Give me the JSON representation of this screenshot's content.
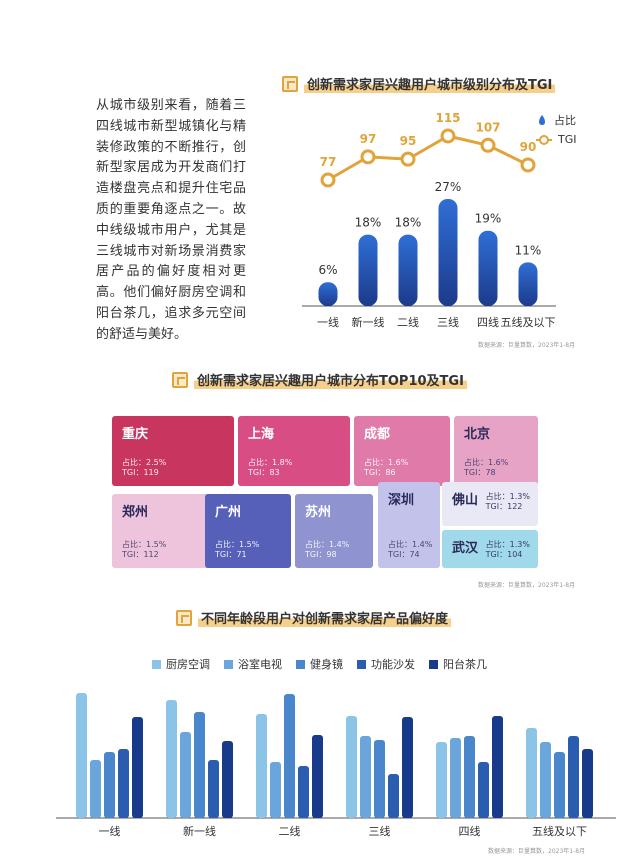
{
  "intro_text": "从城市级别来看，随着三四线城市新型城镇化与精装修政策的不断推行，创新型家居成为开发商们打造楼盘亮点和提升住宅品质的重要角逐点之一。故中线级城市用户，尤其是三线城市对新场景消费家居产品的偏好度相对更高。他们偏好厨房空调和阳台茶几，追求多元空间的舒适与美好。",
  "section1": {
    "title": "创新需求家居兴趣用户城市级别分布及TGI",
    "legend_share": "占比",
    "legend_tgi": "TGI",
    "source": "数据来源：巨量算数，2023年1-8月"
  },
  "section2": {
    "title": "创新需求家居兴趣用户城市分布TOP10及TGI",
    "source": "数据来源：巨量算数，2023年1-8月",
    "share_prefix": "占比：",
    "tgi_prefix": "TGI："
  },
  "section3": {
    "title": "不同年龄段用户对创新需求家居产品偏好度",
    "source": "数据来源：巨量算数，2023年1-8月"
  },
  "colors": {
    "bar_top": "#2f6fd6",
    "bar_bottom": "#1c3a8a",
    "tgi_line": "#e0a43a",
    "accent": "#f6cf8a"
  },
  "chart_data": [
    {
      "type": "bar",
      "title": "创新需求家居兴趣用户城市级别分布及TGI",
      "categories": [
        "一线",
        "新一线",
        "二线",
        "三线",
        "四线",
        "五线及以下"
      ],
      "series": [
        {
          "name": "占比",
          "values": [
            6,
            18,
            18,
            27,
            19,
            11
          ],
          "labels": [
            "6%",
            "18%",
            "18%",
            "27%",
            "19%",
            "11%"
          ]
        },
        {
          "name": "TGI",
          "type": "line",
          "values": [
            77,
            97,
            95,
            115,
            107,
            90
          ]
        }
      ],
      "legend": "top-right",
      "grid": false
    },
    {
      "type": "table",
      "title": "创新需求家居兴趣用户城市分布TOP10及TGI",
      "rows": [
        {
          "city": "重庆",
          "share": "2.5%",
          "tgi": "119",
          "color": "#c8355f"
        },
        {
          "city": "上海",
          "share": "1.8%",
          "tgi": "83",
          "color": "#d84e84"
        },
        {
          "city": "成都",
          "share": "1.6%",
          "tgi": "86",
          "color": "#e07aa8"
        },
        {
          "city": "北京",
          "share": "1.6%",
          "tgi": "78",
          "color": "#e7a3c6"
        },
        {
          "city": "郑州",
          "share": "1.5%",
          "tgi": "112",
          "color": "#eec4dc"
        },
        {
          "city": "广州",
          "share": "1.5%",
          "tgi": "71",
          "color": "#5660b8"
        },
        {
          "city": "苏州",
          "share": "1.4%",
          "tgi": "98",
          "color": "#8f93d0"
        },
        {
          "city": "深圳",
          "share": "1.4%",
          "tgi": "74",
          "color": "#c2c2ea"
        },
        {
          "city": "佛山",
          "share": "1.3%",
          "tgi": "122",
          "color": "#e9e9f6"
        },
        {
          "city": "武汉",
          "share": "1.3%",
          "tgi": "104",
          "color": "#9fd9ea"
        }
      ]
    },
    {
      "type": "bar",
      "title": "不同年龄段用户对创新需求家居产品偏好度",
      "categories": [
        "一线",
        "新一线",
        "二线",
        "三线",
        "四线",
        "五线及以下"
      ],
      "series": [
        {
          "name": "厨房空调",
          "color": "#8cc4e8",
          "values": [
            125,
            118,
            104,
            102,
            76,
            90
          ]
        },
        {
          "name": "浴室电视",
          "color": "#6aa6dc",
          "values": [
            58,
            86,
            56,
            82,
            80,
            76
          ]
        },
        {
          "name": "健身镜",
          "color": "#4a86cc",
          "values": [
            66,
            106,
            124,
            78,
            82,
            66
          ]
        },
        {
          "name": "功能沙发",
          "color": "#2a5cb0",
          "values": [
            69,
            58,
            52,
            44,
            56,
            82
          ]
        },
        {
          "name": "阳台茶几",
          "color": "#183a8a",
          "values": [
            101,
            77,
            83,
            101,
            102,
            69
          ]
        }
      ],
      "legend": "top",
      "grid": false
    }
  ]
}
